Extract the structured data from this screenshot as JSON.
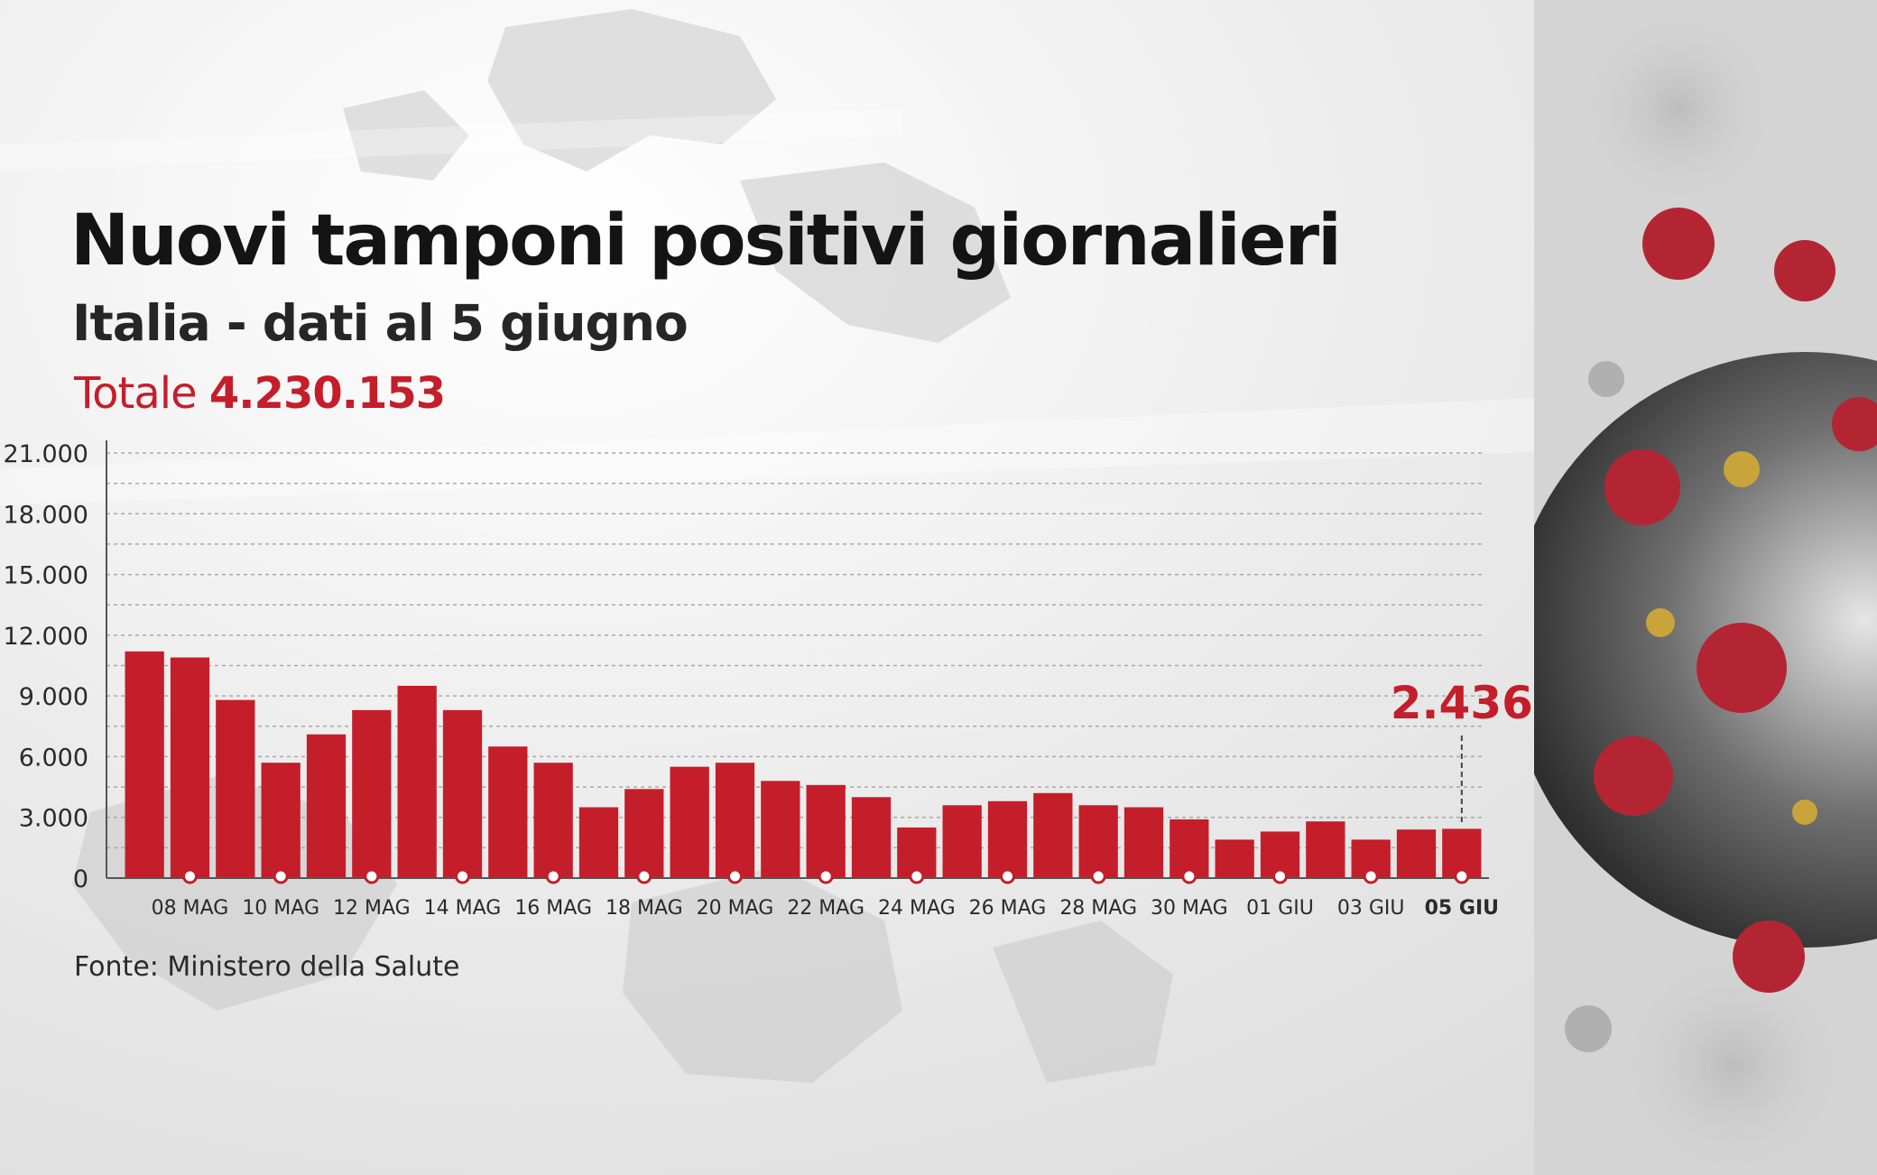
{
  "title": "Nuovi tamponi positivi giornalieri",
  "subtitle": "Italia - dati al 5 giugno",
  "total": {
    "label": "Totale",
    "value": "4.230.153"
  },
  "source": "Fonte: Ministero della Salute",
  "colors": {
    "bar": "#c41e2a",
    "accent": "#c41e2a",
    "text": "#141414"
  },
  "chart_data": {
    "type": "bar",
    "title": "Nuovi tamponi positivi giornalieri",
    "subtitle": "Italia - dati al 5 giugno",
    "xlabel": "",
    "ylabel": "",
    "ylim": [
      0,
      21000
    ],
    "yticks": [
      0,
      3000,
      6000,
      9000,
      12000,
      15000,
      18000,
      21000
    ],
    "ytick_labels": [
      "0",
      "3.000",
      "6.000",
      "9.000",
      "12.000",
      "15.000",
      "18.000",
      "21.000"
    ],
    "grid": "horizontal dashed",
    "dates": [
      "07 MAG",
      "08 MAG",
      "09 MAG",
      "10 MAG",
      "11 MAG",
      "12 MAG",
      "13 MAG",
      "14 MAG",
      "15 MAG",
      "16 MAG",
      "17 MAG",
      "18 MAG",
      "19 MAG",
      "20 MAG",
      "21 MAG",
      "22 MAG",
      "23 MAG",
      "24 MAG",
      "25 MAG",
      "26 MAG",
      "27 MAG",
      "28 MAG",
      "29 MAG",
      "30 MAG",
      "31 MAG",
      "01 GIU",
      "02 GIU",
      "03 GIU",
      "04 GIU",
      "05 GIU"
    ],
    "tick_labels": [
      "08 MAG",
      "10 MAG",
      "12 MAG",
      "14 MAG",
      "16 MAG",
      "18 MAG",
      "20 MAG",
      "22 MAG",
      "24 MAG",
      "26 MAG",
      "28 MAG",
      "30 MAG",
      "01 GIU",
      "03 GIU",
      "05 GIU"
    ],
    "values": [
      11200,
      10900,
      8800,
      5700,
      7100,
      8300,
      9500,
      8300,
      6500,
      5700,
      3500,
      4400,
      5500,
      5700,
      4800,
      4600,
      4000,
      2500,
      3600,
      3800,
      4200,
      3600,
      3500,
      2900,
      1900,
      2300,
      2800,
      1900,
      2400,
      2436
    ],
    "highlight": {
      "date": "05 GIU",
      "label": "2.436",
      "value": 2436
    }
  }
}
